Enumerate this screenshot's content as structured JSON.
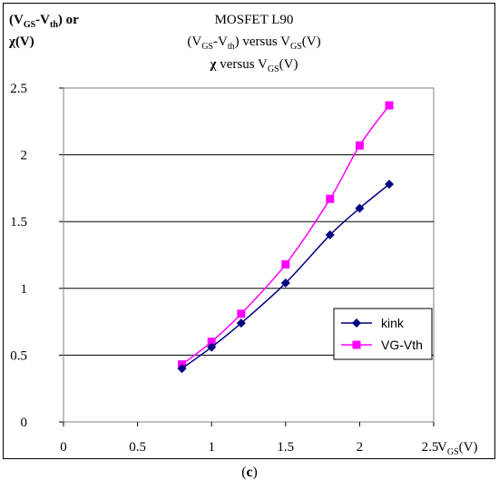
{
  "chart_data": {
    "type": "line",
    "title_lines": [
      "MOSFET L90",
      "(V_GS-V_th) versus V_GS(V)",
      "χ versus V_GS(V)"
    ],
    "ylabel_lines": [
      "(V_GS-V_th) or",
      "χ(V)"
    ],
    "xlabel": "V_GS(V)",
    "xlim": [
      0,
      2.5
    ],
    "ylim": [
      0,
      2.5
    ],
    "xticks": [
      "0",
      "0.5",
      "1",
      "1.5",
      "2",
      "2.5"
    ],
    "yticks": [
      "0",
      "0.5",
      "1",
      "1.5",
      "2",
      "2.5"
    ],
    "grid": "horizontal",
    "legend_position": "right",
    "series": [
      {
        "name": "kink",
        "color": "#000080",
        "marker": "diamond",
        "x": [
          0.8,
          1.0,
          1.2,
          1.5,
          1.8,
          2.0,
          2.2
        ],
        "y": [
          0.4,
          0.56,
          0.74,
          1.04,
          1.4,
          1.6,
          1.78
        ]
      },
      {
        "name": "VG-Vth",
        "color": "#ff00ff",
        "marker": "square",
        "x": [
          0.8,
          1.0,
          1.2,
          1.5,
          1.8,
          2.0,
          2.2
        ],
        "y": [
          0.43,
          0.6,
          0.81,
          1.18,
          1.67,
          2.07,
          2.37
        ]
      }
    ]
  },
  "caption": "(c)"
}
